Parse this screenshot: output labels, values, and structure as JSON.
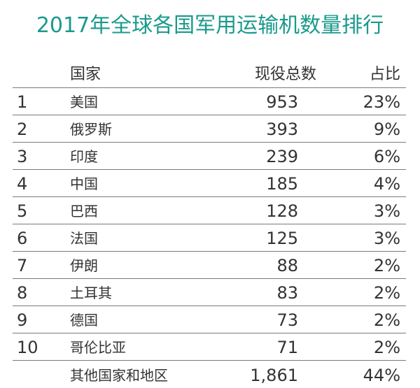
{
  "chart_data": {
    "type": "table",
    "title": "2017年全球各国军用运输机数量排行",
    "columns": [
      "",
      "国家",
      "现役总数",
      "占比"
    ],
    "rows": [
      {
        "rank": "1",
        "country": "美国",
        "total": "953",
        "share": "23%"
      },
      {
        "rank": "2",
        "country": "俄罗斯",
        "total": "393",
        "share": "9%"
      },
      {
        "rank": "3",
        "country": "印度",
        "total": "239",
        "share": "6%"
      },
      {
        "rank": "4",
        "country": "中国",
        "total": "185",
        "share": "4%"
      },
      {
        "rank": "5",
        "country": "巴西",
        "total": "128",
        "share": "3%"
      },
      {
        "rank": "6",
        "country": "法国",
        "total": "125",
        "share": "3%"
      },
      {
        "rank": "7",
        "country": "伊朗",
        "total": "88",
        "share": "2%"
      },
      {
        "rank": "8",
        "country": "土耳其",
        "total": "83",
        "share": "2%"
      },
      {
        "rank": "9",
        "country": "德国",
        "total": "73",
        "share": "2%"
      },
      {
        "rank": "10",
        "country": "哥伦比亚",
        "total": "71",
        "share": "2%"
      },
      {
        "rank": "",
        "country": "其他国家和地区",
        "total": "1,861",
        "share": "44%"
      }
    ],
    "colors": {
      "title": "#1a9a8c",
      "text": "#333333",
      "rule": "#7a7a7a"
    }
  }
}
